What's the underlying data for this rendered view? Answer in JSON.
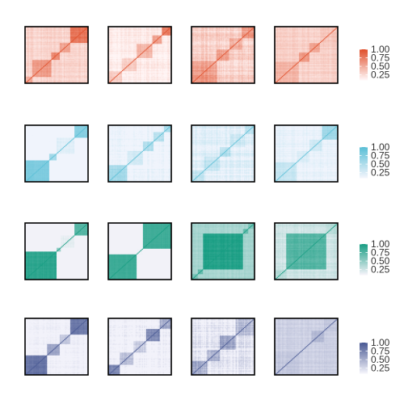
{
  "chart_data": {
    "type": "heatmap",
    "description_grid": "4 rows x 4 columns of square correlation-style heatmaps, diagonal from bottom-left to top-right, each row has its own color legend",
    "grid": {
      "rows": 4,
      "cols": 4
    },
    "scale": {
      "min": 0.1,
      "max": 1.0
    },
    "legend_ticks": [
      "1.00",
      "0.75",
      "0.50",
      "0.25"
    ],
    "legend_values": [
      1.0,
      0.75,
      0.5,
      0.25
    ],
    "rows": [
      {
        "palette": "red",
        "colors": {
          "low": "#fff5f5",
          "high": "#e0502c"
        },
        "panels": [
          {
            "blocks": [
              [
                0.0,
                0.12
              ],
              [
                0.12,
                0.42
              ],
              [
                0.42,
                0.55
              ],
              [
                0.55,
                0.72
              ],
              [
                0.72,
                1.0
              ]
            ],
            "within": [
              0.5,
              0.6,
              0.7,
              0.55,
              0.8
            ],
            "background": 0.28,
            "noise": 0.1
          },
          {
            "blocks": [
              [
                0.0,
                0.22
              ],
              [
                0.22,
                0.45
              ],
              [
                0.45,
                0.7
              ],
              [
                0.7,
                0.85
              ],
              [
                0.85,
                1.0
              ]
            ],
            "within": [
              0.35,
              0.3,
              0.45,
              0.55,
              0.75
            ],
            "background": 0.15,
            "noise": 0.1
          },
          {
            "blocks": [
              [
                0.0,
                0.4
              ],
              [
                0.4,
                0.6
              ],
              [
                0.6,
                0.8
              ],
              [
                0.8,
                1.0
              ]
            ],
            "within": [
              0.6,
              0.55,
              0.5,
              0.6
            ],
            "background": 0.3,
            "noise": 0.16
          },
          {
            "blocks": [
              [
                0.0,
                0.38
              ],
              [
                0.38,
                0.55
              ],
              [
                0.55,
                0.72
              ],
              [
                0.72,
                1.0
              ]
            ],
            "within": [
              0.45,
              0.6,
              0.55,
              0.35
            ],
            "background": 0.3,
            "noise": 0.09
          }
        ]
      },
      {
        "palette": "cyan",
        "colors": {
          "low": "#f0f4fc",
          "high": "#5bbfd6"
        },
        "panels": [
          {
            "blocks": [
              [
                0.0,
                0.38
              ],
              [
                0.38,
                0.5
              ],
              [
                0.5,
                0.78
              ],
              [
                0.78,
                1.0
              ]
            ],
            "within": [
              0.8,
              0.55,
              0.2,
              0.75
            ],
            "background": 0.06,
            "noise": 0.05
          },
          {
            "blocks": [
              [
                0.0,
                0.3
              ],
              [
                0.3,
                0.55
              ],
              [
                0.55,
                0.72
              ],
              [
                0.72,
                0.88
              ],
              [
                0.88,
                1.0
              ]
            ],
            "within": [
              0.55,
              0.3,
              0.5,
              0.45,
              0.55
            ],
            "background": 0.12,
            "noise": 0.1
          },
          {
            "blocks": [
              [
                0.0,
                0.2
              ],
              [
                0.2,
                0.45
              ],
              [
                0.45,
                0.62
              ],
              [
                0.62,
                0.85
              ],
              [
                0.85,
                1.0
              ]
            ],
            "within": [
              0.4,
              0.35,
              0.45,
              0.3,
              0.4
            ],
            "background": 0.18,
            "noise": 0.14
          },
          {
            "blocks": [
              [
                0.0,
                0.35
              ],
              [
                0.35,
                0.55
              ],
              [
                0.55,
                0.75
              ],
              [
                0.75,
                1.0
              ]
            ],
            "within": [
              0.35,
              0.25,
              0.3,
              0.6
            ],
            "background": 0.15,
            "noise": 0.08
          }
        ]
      },
      {
        "palette": "green",
        "colors": {
          "low": "#f2f2f8",
          "high": "#1a9e84"
        },
        "panels": [
          {
            "blocks": [
              [
                0.0,
                0.5
              ],
              [
                0.5,
                0.57
              ],
              [
                0.57,
                0.78
              ],
              [
                0.78,
                1.0
              ]
            ],
            "within": [
              0.92,
              0.5,
              0.15,
              0.75
            ],
            "background": 0.05,
            "noise": 0.04
          },
          {
            "blocks": [
              [
                0.0,
                0.45
              ],
              [
                0.45,
                0.55
              ],
              [
                0.55,
                1.0
              ]
            ],
            "within": [
              0.85,
              0.1,
              0.85
            ],
            "background": 0.04,
            "noise": 0.03
          },
          {
            "blocks": [
              [
                0.0,
                0.1
              ],
              [
                0.1,
                0.18
              ],
              [
                0.18,
                0.82
              ],
              [
                0.82,
                0.9
              ],
              [
                0.9,
                1.0
              ]
            ],
            "within": [
              0.6,
              0.7,
              0.97,
              0.7,
              0.6
            ],
            "background": 0.42,
            "noise": 0.06
          },
          {
            "blocks": [
              [
                0.0,
                0.18
              ],
              [
                0.18,
                0.82
              ],
              [
                0.82,
                1.0
              ]
            ],
            "within": [
              0.35,
              0.75,
              0.35
            ],
            "background": 0.25,
            "noise": 0.08
          }
        ]
      },
      {
        "palette": "navy",
        "colors": {
          "low": "#f2f2fa",
          "high": "#4a5a94"
        },
        "panels": [
          {
            "blocks": [
              [
                0.0,
                0.35
              ],
              [
                0.35,
                0.55
              ],
              [
                0.55,
                0.72
              ],
              [
                0.72,
                1.0
              ]
            ],
            "within": [
              0.85,
              0.55,
              0.35,
              0.8
            ],
            "background": 0.1,
            "noise": 0.07
          },
          {
            "blocks": [
              [
                0.0,
                0.18
              ],
              [
                0.18,
                0.4
              ],
              [
                0.4,
                0.6
              ],
              [
                0.6,
                0.82
              ],
              [
                0.82,
                1.0
              ]
            ],
            "within": [
              0.75,
              0.4,
              0.3,
              0.7,
              0.5
            ],
            "background": 0.08,
            "noise": 0.12
          },
          {
            "blocks": [
              [
                0.0,
                0.25
              ],
              [
                0.25,
                0.45
              ],
              [
                0.45,
                0.7
              ],
              [
                0.7,
                1.0
              ]
            ],
            "within": [
              0.5,
              0.45,
              0.55,
              0.4
            ],
            "background": 0.15,
            "noise": 0.18
          },
          {
            "blocks": [
              [
                0.0,
                0.4
              ],
              [
                0.4,
                0.58
              ],
              [
                0.58,
                0.78
              ],
              [
                0.78,
                1.0
              ]
            ],
            "within": [
              0.35,
              0.3,
              0.45,
              0.35
            ],
            "background": 0.3,
            "noise": 0.07
          }
        ]
      }
    ]
  }
}
